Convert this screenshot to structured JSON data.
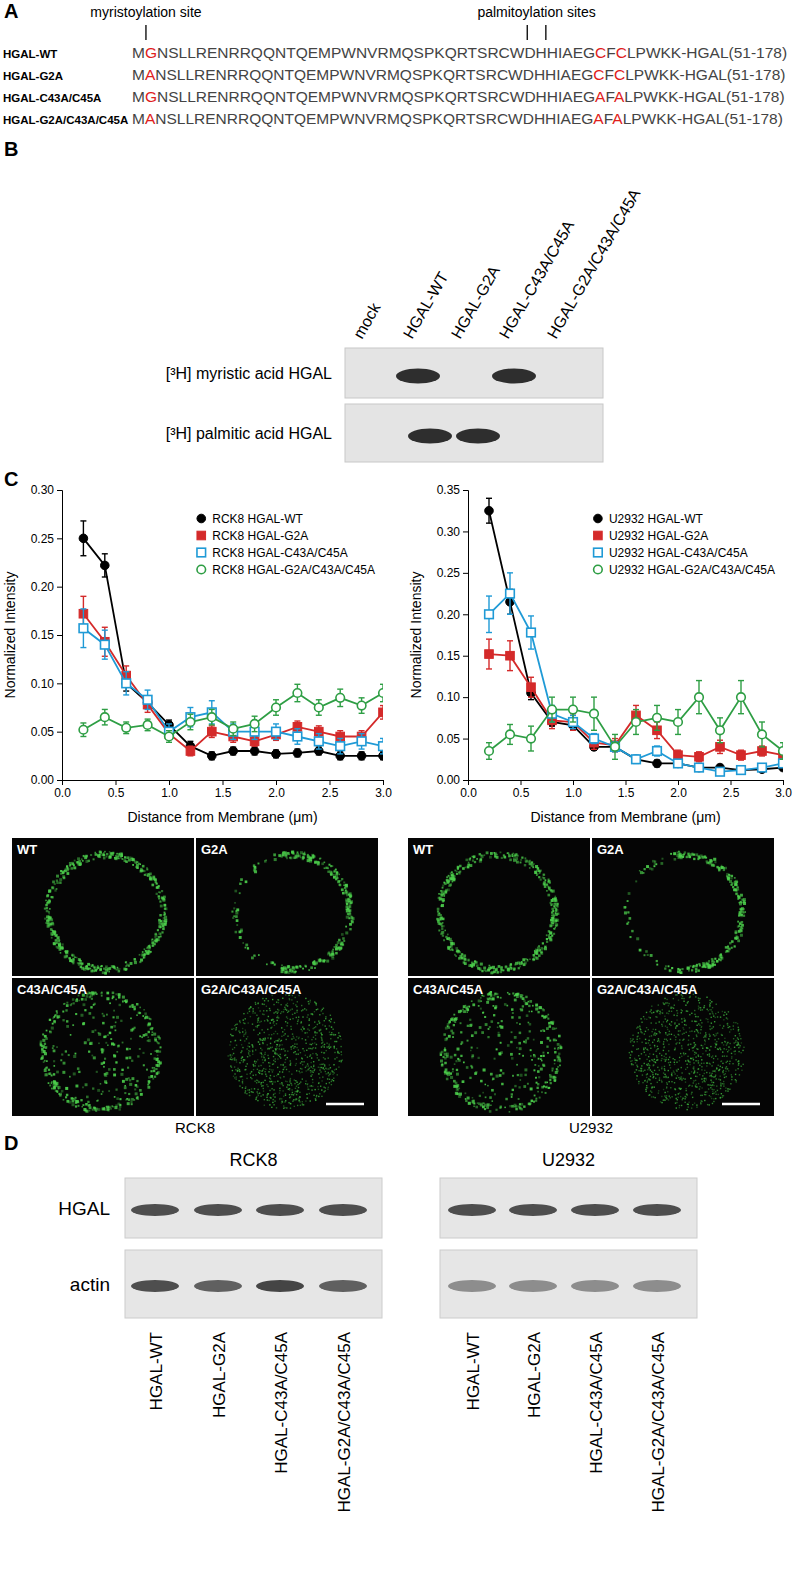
{
  "panel_labels": [
    "A",
    "B",
    "C",
    "D"
  ],
  "alignment": {
    "annotations": [
      {
        "text": "myristoylation site",
        "positions": [
          2
        ]
      },
      {
        "text": "palmitoylation sites",
        "positions": [
          43,
          45
        ]
      }
    ],
    "rows": [
      {
        "label": "HGAL-WT",
        "sequence": "MGNSLLRENRRQQNTQEMPWNVRMQSPKQRTSRCWDHHIAEGCFCLPWKK-HGAL(51-178)"
      },
      {
        "label": "HGAL-G2A",
        "sequence": "MANSLLRENRRQQNTQEMPWNVRMQSPKQRTSRCWDHHIAEGCFCLPWKK-HGAL(51-178)"
      },
      {
        "label": "HGAL-C43A/C45A",
        "sequence": "MGNSLLRENRRQQNTQEMPWNVRMQSPKQRTSRCWDHHIAEGAFALPWKK-HGAL(51-178)"
      },
      {
        "label": "HGAL-G2A/C43A/C45A",
        "sequence": "MANSLLRENRRQQNTQEMPWNVRMQSPKQRTSRCWDHHIAEGAFALPWKK-HGAL(51-178)"
      }
    ]
  },
  "blot_b": {
    "lanes": [
      "mock",
      "HGAL-WT",
      "HGAL-G2A",
      "HGAL-C43A/C45A",
      "HGAL-G2A/C43A/C45A"
    ],
    "rows": [
      {
        "label": "[³H] myristic acid HGAL",
        "bands": [
          0,
          1,
          0,
          1,
          0
        ]
      },
      {
        "label": "[³H] palmitic acid HGAL",
        "bands": [
          0,
          1,
          1,
          0,
          0
        ]
      }
    ]
  },
  "chart_data": [
    {
      "type": "line",
      "x_label": "Distance from Membrane (μm)",
      "y_label": "Normalized Intensity",
      "x": [
        0.2,
        0.4,
        0.6,
        0.8,
        1.0,
        1.2,
        1.4,
        1.6,
        1.8,
        2.0,
        2.2,
        2.4,
        2.6,
        2.8,
        3.0
      ],
      "xlim": [
        0,
        3.0
      ],
      "xticks": [
        {
          "value": 0,
          "label": "0.0"
        },
        {
          "value": 0.5,
          "label": "0.5"
        },
        {
          "value": 1.0,
          "label": "1.0"
        },
        {
          "value": 1.5,
          "label": "1.5"
        },
        {
          "value": 2.0,
          "label": "2.0"
        },
        {
          "value": 2.5,
          "label": "2.5"
        },
        {
          "value": 3.0,
          "label": "3.0"
        }
      ],
      "ylim": [
        0,
        0.3
      ],
      "yticks": [
        {
          "value": 0,
          "label": "0.00"
        },
        {
          "value": 0.05,
          "label": "0.05"
        },
        {
          "value": 0.1,
          "label": "0.10"
        },
        {
          "value": 0.15,
          "label": "0.15"
        },
        {
          "value": 0.2,
          "label": "0.20"
        },
        {
          "value": 0.25,
          "label": "0.25"
        },
        {
          "value": 0.3,
          "label": "0.30"
        }
      ],
      "legend": "upper right",
      "series": [
        {
          "name": "RCK8 HGAL-WT",
          "color": "#000000",
          "marker": "circle",
          "values": [
            0.25,
            0.222,
            0.1,
            0.08,
            0.057,
            0.035,
            0.025,
            0.03,
            0.03,
            0.027,
            0.028,
            0.03,
            0.025,
            0.025,
            0.025
          ],
          "errors": [
            0.018,
            0.012,
            0.008,
            0.006,
            0.005,
            0.005,
            0.004,
            0.004,
            0.004,
            0.004,
            0.004,
            0.004,
            0.004,
            0.004,
            0.004
          ]
        },
        {
          "name": "RCK8 HGAL-G2A",
          "color": "#d42a2a",
          "marker": "square",
          "values": [
            0.172,
            0.143,
            0.108,
            0.078,
            0.048,
            0.03,
            0.05,
            0.045,
            0.04,
            0.047,
            0.055,
            0.05,
            0.045,
            0.045,
            0.07
          ],
          "errors": [
            0.018,
            0.015,
            0.01,
            0.008,
            0.006,
            0.005,
            0.006,
            0.006,
            0.005,
            0.006,
            0.006,
            0.006,
            0.006,
            0.006,
            0.007
          ]
        },
        {
          "name": "RCK8 HGAL-C43A/C45A",
          "color": "#1f9ad6",
          "marker": "square-open",
          "values": [
            0.157,
            0.14,
            0.1,
            0.083,
            0.05,
            0.065,
            0.07,
            0.05,
            0.05,
            0.05,
            0.045,
            0.04,
            0.035,
            0.04,
            0.035
          ],
          "errors": [
            0.02,
            0.015,
            0.012,
            0.01,
            0.008,
            0.01,
            0.012,
            0.008,
            0.008,
            0.008,
            0.008,
            0.008,
            0.008,
            0.008,
            0.008
          ]
        },
        {
          "name": "RCK8 HGAL-G2A/C43A/C45A",
          "color": "#2e9e44",
          "marker": "circle-open",
          "values": [
            0.052,
            0.065,
            0.054,
            0.057,
            0.045,
            0.06,
            0.065,
            0.053,
            0.058,
            0.075,
            0.09,
            0.075,
            0.085,
            0.077,
            0.09
          ],
          "errors": [
            0.007,
            0.008,
            0.006,
            0.006,
            0.006,
            0.008,
            0.008,
            0.007,
            0.008,
            0.008,
            0.009,
            0.008,
            0.009,
            0.008,
            0.009
          ]
        }
      ]
    },
    {
      "type": "line",
      "x_label": "Distance from Membrane (μm)",
      "y_label": "Normalized Intensity",
      "x": [
        0.2,
        0.4,
        0.6,
        0.8,
        1.0,
        1.2,
        1.4,
        1.6,
        1.8,
        2.0,
        2.2,
        2.4,
        2.6,
        2.8,
        3.0
      ],
      "xlim": [
        0,
        3.0
      ],
      "xticks": [
        {
          "value": 0,
          "label": "0.0"
        },
        {
          "value": 0.5,
          "label": "0.5"
        },
        {
          "value": 1.0,
          "label": "1.0"
        },
        {
          "value": 1.5,
          "label": "1.5"
        },
        {
          "value": 2.0,
          "label": "2.0"
        },
        {
          "value": 2.5,
          "label": "2.5"
        },
        {
          "value": 3.0,
          "label": "3.0"
        }
      ],
      "ylim": [
        0,
        0.35
      ],
      "yticks": [
        {
          "value": 0,
          "label": "0.00"
        },
        {
          "value": 0.05,
          "label": "0.05"
        },
        {
          "value": 0.1,
          "label": "0.10"
        },
        {
          "value": 0.15,
          "label": "0.15"
        },
        {
          "value": 0.2,
          "label": "0.20"
        },
        {
          "value": 0.25,
          "label": "0.25"
        },
        {
          "value": 0.3,
          "label": "0.30"
        },
        {
          "value": 0.35,
          "label": "0.35"
        }
      ],
      "legend": "upper right",
      "series": [
        {
          "name": "U2932 HGAL-WT",
          "color": "#000000",
          "marker": "circle",
          "values": [
            0.325,
            0.215,
            0.105,
            0.07,
            0.066,
            0.04,
            0.04,
            0.025,
            0.02,
            0.02,
            0.015,
            0.015,
            0.012,
            0.013,
            0.015
          ],
          "errors": [
            0.015,
            0.015,
            0.008,
            0.005,
            0.005,
            0.004,
            0.004,
            0.004,
            0.004,
            0.003,
            0.003,
            0.003,
            0.003,
            0.003,
            0.003
          ]
        },
        {
          "name": "U2932 HGAL-G2A",
          "color": "#d42a2a",
          "marker": "square",
          "values": [
            0.152,
            0.15,
            0.112,
            0.072,
            0.07,
            0.045,
            0.042,
            0.078,
            0.06,
            0.03,
            0.028,
            0.04,
            0.03,
            0.035,
            0.03
          ],
          "errors": [
            0.018,
            0.018,
            0.012,
            0.01,
            0.01,
            0.008,
            0.008,
            0.012,
            0.01,
            0.006,
            0.006,
            0.008,
            0.006,
            0.006,
            0.006
          ]
        },
        {
          "name": "U2932 HGAL-C43A/C45A",
          "color": "#1f9ad6",
          "marker": "square-open",
          "values": [
            0.2,
            0.225,
            0.178,
            0.08,
            0.07,
            0.05,
            0.04,
            0.025,
            0.035,
            0.02,
            0.015,
            0.01,
            0.012,
            0.015,
            0.02
          ],
          "errors": [
            0.022,
            0.025,
            0.02,
            0.01,
            0.008,
            0.006,
            0.006,
            0.005,
            0.006,
            0.004,
            0.004,
            0.003,
            0.003,
            0.004,
            0.004
          ]
        },
        {
          "name": "U2932 HGAL-G2A/C43A/C45A",
          "color": "#2e9e44",
          "marker": "circle-open",
          "values": [
            0.035,
            0.055,
            0.05,
            0.085,
            0.085,
            0.08,
            0.04,
            0.07,
            0.075,
            0.07,
            0.1,
            0.06,
            0.1,
            0.055,
            0.035
          ],
          "errors": [
            0.01,
            0.012,
            0.015,
            0.015,
            0.015,
            0.02,
            0.015,
            0.015,
            0.015,
            0.015,
            0.02,
            0.015,
            0.02,
            0.015,
            0.01
          ]
        }
      ]
    }
  ],
  "micrographs": [
    {
      "cell_line": "RCK8",
      "panels": [
        "WT",
        "G2A",
        "C43A/C45A",
        "G2A/C43A/C45A"
      ]
    },
    {
      "cell_line": "U2932",
      "panels": [
        "WT",
        "G2A",
        "C43A/C45A",
        "G2A/C43A/C45A"
      ]
    }
  ],
  "blot_d": {
    "row_labels": [
      "HGAL",
      "actin"
    ],
    "lanes": [
      "HGAL-WT",
      "HGAL-G2A",
      "HGAL-C43A/C45A",
      "HGAL-G2A/C43A/C45A"
    ],
    "blots": [
      {
        "title": "RCK8",
        "bands": [
          [
            0.85,
            0.85,
            0.85,
            0.85
          ],
          [
            0.85,
            0.75,
            0.9,
            0.75
          ]
        ]
      },
      {
        "title": "U2932",
        "bands": [
          [
            0.85,
            0.85,
            0.85,
            0.85
          ],
          [
            0.5,
            0.5,
            0.5,
            0.5
          ]
        ]
      }
    ]
  }
}
